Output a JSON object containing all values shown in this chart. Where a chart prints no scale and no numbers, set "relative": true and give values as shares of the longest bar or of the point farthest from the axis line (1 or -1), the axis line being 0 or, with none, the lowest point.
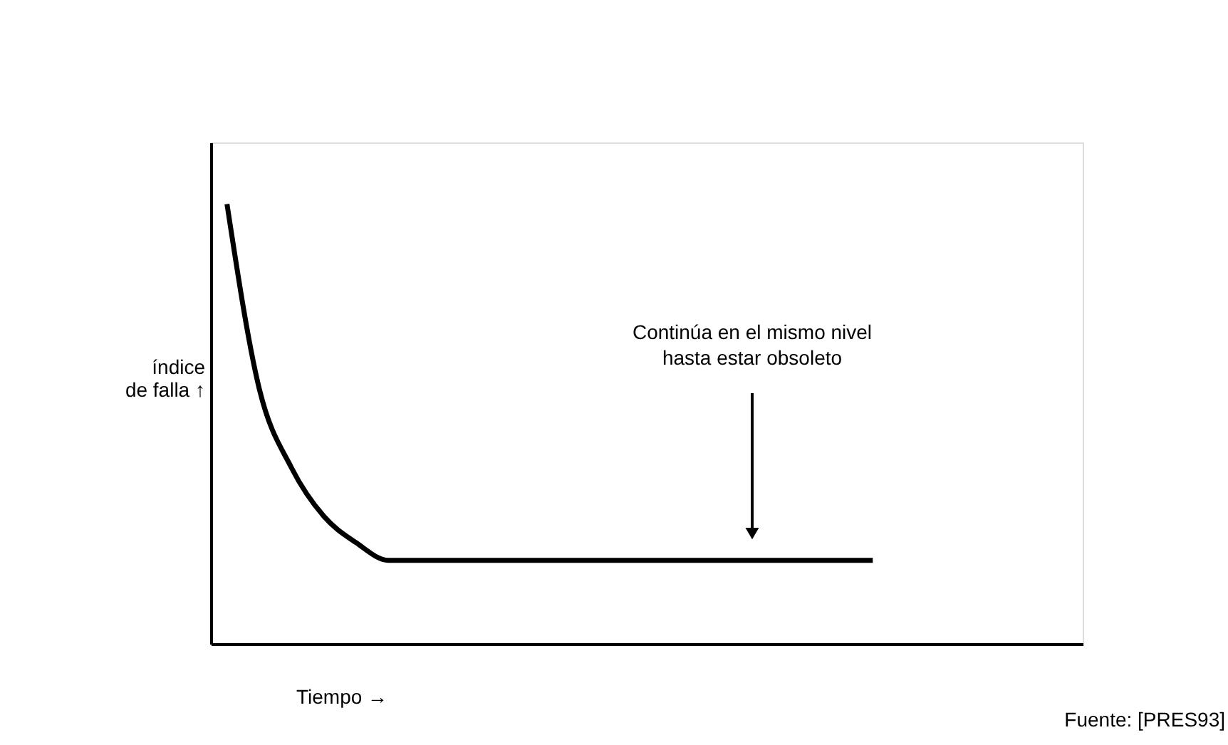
{
  "chart_data": {
    "type": "line",
    "relative": true,
    "xlabel": "Tiempo →",
    "ylabel": "índice\nde falla ↑",
    "categories": [
      null,
      null,
      null,
      null,
      null,
      null,
      null,
      null,
      null,
      null,
      null,
      null,
      null,
      null,
      null,
      null,
      null,
      null,
      null,
      null,
      null,
      null,
      null,
      null,
      null,
      null,
      null
    ],
    "series": [
      {
        "color": "#000000",
        "values": [
          1,
          0.58,
          0.4,
          0.29,
          0.23,
          0.19,
          0.19,
          0.19,
          0.19,
          0.19,
          0.19,
          0.19,
          0.19,
          0.19,
          0.19,
          0.19,
          0.19,
          0.19,
          0.19,
          0.19,
          0.19,
          null,
          null,
          null,
          null,
          null,
          null
        ]
      }
    ],
    "annotations": [
      "Continúa en el mismo nivel\nhasta estar obsoleto",
      "Fuente: [PRES93]"
    ],
    "tick_labels": false,
    "grid": false,
    "marker": "none",
    "line_style": "solid"
  }
}
